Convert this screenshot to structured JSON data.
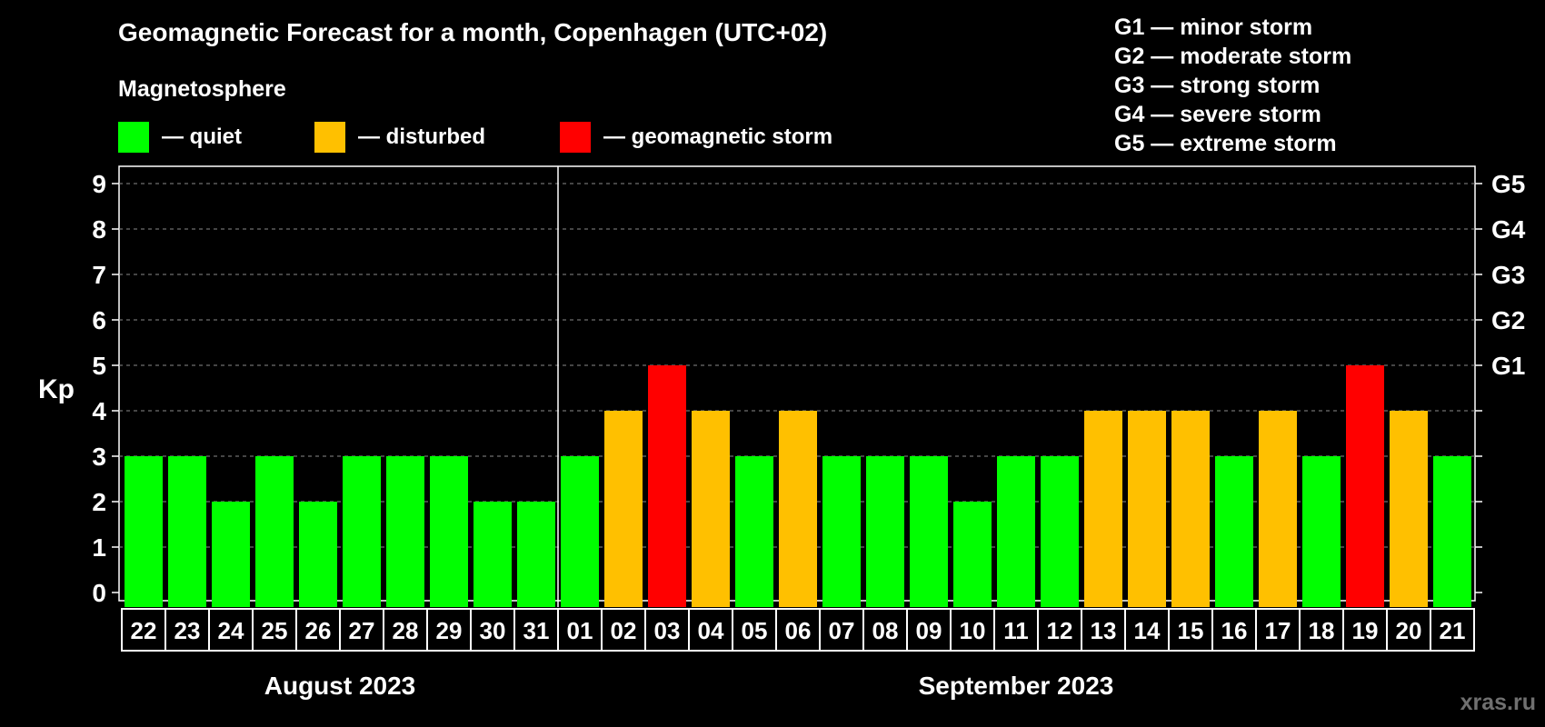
{
  "chart_data": {
    "type": "bar",
    "title": "Geomagnetic Forecast for a month, Copenhagen (UTC+02)",
    "subtitle": "Magnetosphere",
    "ylabel": "Kp",
    "ylim": [
      0,
      9
    ],
    "yticks": [
      "0",
      "1",
      "2",
      "3",
      "4",
      "5",
      "6",
      "7",
      "8",
      "9"
    ],
    "right_labels": [
      {
        "kp": 5,
        "label": "G1"
      },
      {
        "kp": 6,
        "label": "G2"
      },
      {
        "kp": 7,
        "label": "G3"
      },
      {
        "kp": 8,
        "label": "G4"
      },
      {
        "kp": 9,
        "label": "G5"
      }
    ],
    "categories": [
      "22",
      "23",
      "24",
      "25",
      "26",
      "27",
      "28",
      "29",
      "30",
      "31",
      "01",
      "02",
      "03",
      "04",
      "05",
      "06",
      "07",
      "08",
      "09",
      "10",
      "11",
      "12",
      "13",
      "14",
      "15",
      "16",
      "17",
      "18",
      "19",
      "20",
      "21"
    ],
    "values": [
      3,
      3,
      2,
      3,
      2,
      3,
      3,
      3,
      2,
      2,
      3,
      4,
      5,
      4,
      3,
      4,
      3,
      3,
      3,
      2,
      3,
      3,
      4,
      4,
      4,
      3,
      4,
      3,
      5,
      4,
      3
    ],
    "months": [
      {
        "label": "August 2023",
        "start": 0,
        "end": 9
      },
      {
        "label": "September 2023",
        "start": 10,
        "end": 30
      }
    ],
    "legend": [
      {
        "label": "— quiet",
        "color": "#00ff00"
      },
      {
        "label": "— disturbed",
        "color": "#ffc000"
      },
      {
        "label": "— geomagnetic storm",
        "color": "#ff0000"
      }
    ],
    "color_rule": {
      "quiet_max": 3,
      "disturbed": 4,
      "storm_min": 5
    }
  },
  "storm_scale": [
    "G1 — minor storm",
    "G2 — moderate storm",
    "G3 — strong storm",
    "G4 — severe storm",
    "G5 — extreme storm"
  ],
  "watermark": "xras.ru"
}
